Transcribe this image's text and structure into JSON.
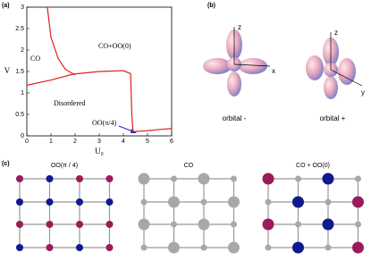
{
  "panels": {
    "a": "(a)",
    "b": "(b)",
    "c": "(c)"
  },
  "chart_data": {
    "type": "line",
    "xlabel": "U₀",
    "ylabel": "V",
    "xlim": [
      0,
      6
    ],
    "ylim": [
      0,
      3
    ],
    "xticks": [
      0,
      1,
      2,
      3,
      4,
      5,
      6
    ],
    "yticks": [
      0,
      0.5,
      1,
      1.5,
      2,
      2.5,
      3
    ],
    "annotations": [
      "CO",
      "CO+OO(0)",
      "Disordered",
      "OO(π/4)"
    ],
    "series": [
      {
        "color": "#e0201b",
        "x": [
          0.85,
          1.0,
          1.3,
          1.6,
          2.0
        ],
        "values": [
          3,
          2.3,
          1.8,
          1.55,
          1.42
        ]
      },
      {
        "color": "#e0201b",
        "x": [
          0,
          1,
          1.93,
          3,
          4.0,
          4.3,
          4.35,
          4.4
        ],
        "values": [
          1.18,
          1.3,
          1.44,
          1.5,
          1.52,
          1.45,
          0.5,
          0.1
        ]
      },
      {
        "color": "#e0201b",
        "x": [
          4.4,
          5,
          5.5,
          6
        ],
        "values": [
          0.1,
          0.12,
          0.15,
          0.17
        ]
      }
    ]
  },
  "orbitals": {
    "left": {
      "label": "orbital -",
      "axes": [
        "z",
        "x"
      ]
    },
    "right": {
      "label": "orbital +",
      "axes": [
        "z",
        "y"
      ]
    }
  },
  "lattices": [
    "OO(π / 4)",
    "CO",
    "CO + OO(0)"
  ]
}
